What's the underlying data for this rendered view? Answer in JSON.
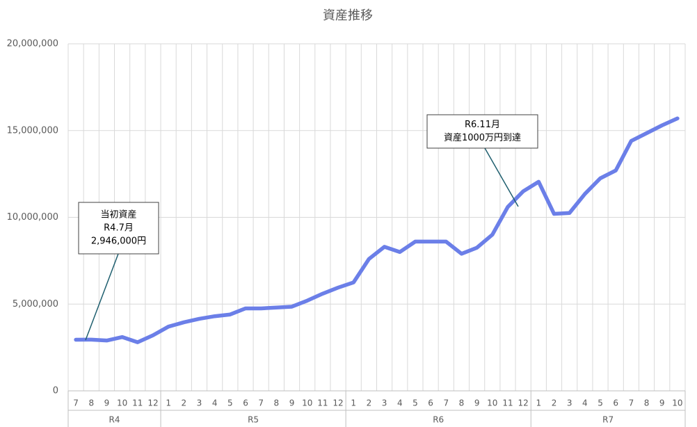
{
  "chart_data": {
    "type": "line",
    "title": "資産推移",
    "category_groups": [
      {
        "label": "R4",
        "categories": [
          "7",
          "8",
          "9",
          "10",
          "11",
          "12"
        ]
      },
      {
        "label": "R5",
        "categories": [
          "1",
          "2",
          "3",
          "4",
          "5",
          "6",
          "7",
          "8",
          "9",
          "10",
          "11",
          "12"
        ]
      },
      {
        "label": "R6",
        "categories": [
          "1",
          "2",
          "3",
          "4",
          "5",
          "6",
          "7",
          "8",
          "9",
          "10",
          "11",
          "12"
        ]
      },
      {
        "label": "R7",
        "categories": [
          "1",
          "2",
          "3",
          "4",
          "5",
          "6",
          "7",
          "8",
          "9",
          "10"
        ]
      }
    ],
    "series": [
      {
        "name": "資産",
        "color": "#6b7fe8",
        "values": [
          2946000,
          2950000,
          2900000,
          3100000,
          2800000,
          3200000,
          3700000,
          3950000,
          4150000,
          4300000,
          4400000,
          4750000,
          4750000,
          4800000,
          4850000,
          5200000,
          5600000,
          5950000,
          6250000,
          7600000,
          8300000,
          8000000,
          8600000,
          8600000,
          8600000,
          7900000,
          8250000,
          9000000,
          10600000,
          11500000,
          12050000,
          10200000,
          10250000,
          11350000,
          12250000,
          12700000,
          14400000,
          14850000,
          15300000,
          15700000
        ]
      }
    ],
    "ylim": [
      0,
      20000000
    ],
    "yticks": [
      0,
      {
        "value": 5000000,
        "label": "5,000,000"
      },
      {
        "value": 10000000,
        "label": "10,000,000"
      },
      {
        "value": 15000000,
        "label": "15,000,000"
      },
      {
        "value": 20000000,
        "label": "20,000,000"
      }
    ],
    "grid": true,
    "annotations": [
      {
        "lines": [
          "当初資産",
          "R4.7月",
          "2,946,000円"
        ]
      },
      {
        "lines": [
          "R6.11月",
          "資産1000万円到達"
        ]
      }
    ]
  }
}
